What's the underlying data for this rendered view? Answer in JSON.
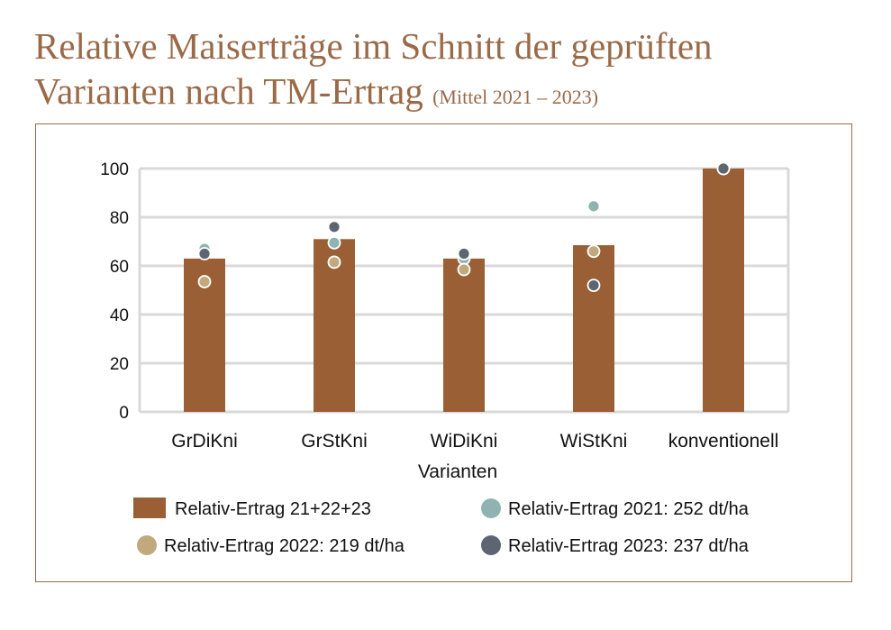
{
  "title": {
    "line1": "Relative Maiserträge im Schnitt der geprüften",
    "line2": "Varianten nach TM-Ertrag",
    "subtitle": "(Mittel 2021 – 2023)"
  },
  "chart_data": {
    "type": "bar",
    "title": "Relative Maiserträge im Schnitt der geprüften Varianten nach TM-Ertrag (Mittel 2021 – 2023)",
    "xlabel": "Varianten",
    "ylabel": "",
    "ylim": [
      0,
      100
    ],
    "yticks": [
      0,
      20,
      40,
      60,
      80,
      100
    ],
    "grid": true,
    "legend_position": "bottom",
    "categories": [
      "GrDiKni",
      "GrStKni",
      "WiDiKni",
      "WiStKni",
      "konventionell"
    ],
    "series": [
      {
        "name": "Relativ-Ertrag 21+22+23",
        "kind": "bar",
        "color": "#9a5f34",
        "values": [
          63,
          71,
          63,
          68.5,
          100
        ]
      },
      {
        "name": "Relativ-Ertrag 2021: 252 dt/ha",
        "kind": "point",
        "color": "#8fb3b0",
        "values": [
          67,
          69.5,
          63,
          84.5,
          100
        ]
      },
      {
        "name": "Relativ-Ertrag 2022: 219 dt/ha",
        "kind": "point",
        "color": "#c2a97d",
        "values": [
          53.5,
          61.5,
          58.5,
          66,
          100
        ]
      },
      {
        "name": "Relativ-Ertrag 2023: 237 dt/ha",
        "kind": "point",
        "color": "#5d6472",
        "values": [
          65,
          76,
          65,
          52,
          100
        ]
      }
    ]
  }
}
